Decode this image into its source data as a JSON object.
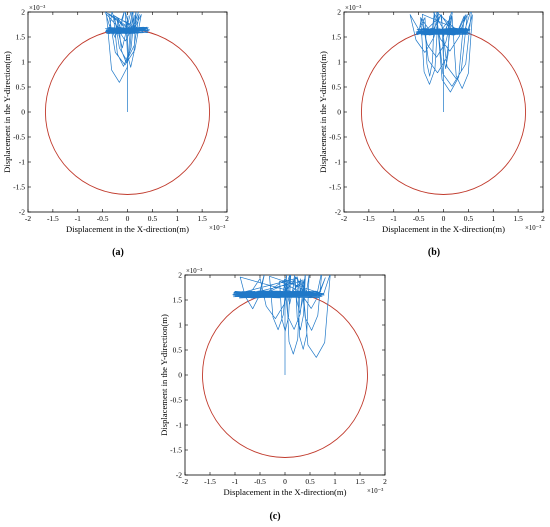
{
  "figure": {
    "panel_labels": [
      "(a)",
      "(b)",
      "(c)"
    ],
    "exponent_label": "×10⁻³",
    "colors": {
      "trajectory": "#1f78c8",
      "boundary_circle": "#c0392b",
      "axes": "#000000"
    }
  },
  "chart_data": [
    {
      "type": "line",
      "panel": "(a)",
      "xlabel": "Displacement in the X-direction(m)",
      "ylabel": "Displacement in the Y-direction(m)",
      "axis_scale": "×10⁻³",
      "xlim": [
        -2,
        2
      ],
      "ylim": [
        -2,
        2
      ],
      "xticks": [
        "-2",
        "-1.5",
        "-1",
        "-0.5",
        "0",
        "0.5",
        "1",
        "1.5",
        "2"
      ],
      "yticks": [
        "-2",
        "-1.5",
        "-1",
        "-0.5",
        "0",
        "0.5",
        "1",
        "1.5",
        "2"
      ],
      "boundary_circle": {
        "center": [
          0,
          0
        ],
        "radius": 1.65
      },
      "trajectory": {
        "start": [
          0,
          0
        ],
        "cluster_center_y": 1.62,
        "cluster_x_range": [
          -0.45,
          0.45
        ],
        "loop_min_y": 0.45
      },
      "grid": false
    },
    {
      "type": "line",
      "panel": "(b)",
      "xlabel": "Displacement in the X-direction(m)",
      "ylabel": "Displacement in the Y-direction(m)",
      "axis_scale": "×10⁻³",
      "xlim": [
        -2,
        2
      ],
      "ylim": [
        -2,
        2
      ],
      "xticks": [
        "-2",
        "-1.5",
        "-1",
        "-0.5",
        "0",
        "0.5",
        "1",
        "1.5",
        "2"
      ],
      "yticks": [
        "-2",
        "-1.5",
        "-1",
        "-0.5",
        "0",
        "0.5",
        "1",
        "1.5",
        "2"
      ],
      "boundary_circle": {
        "center": [
          0,
          0
        ],
        "radius": 1.65
      },
      "trajectory": {
        "start": [
          0,
          0
        ],
        "cluster_center_y": 1.6,
        "cluster_x_range": [
          -0.55,
          0.55
        ],
        "loop_min_y": 0.35
      },
      "grid": false
    },
    {
      "type": "line",
      "panel": "(c)",
      "xlabel": "Displacement in the X-direction(m)",
      "ylabel": "Displacement in the Y-direction(m)",
      "axis_scale": "×10⁻³",
      "xlim": [
        -2,
        2
      ],
      "ylim": [
        -2,
        2
      ],
      "xticks": [
        "-2",
        "-1.5",
        "-1",
        "-0.5",
        "0",
        "0.5",
        "1",
        "1.5",
        "2"
      ],
      "yticks": [
        "-2",
        "-1.5",
        "-1",
        "-0.5",
        "0",
        "0.5",
        "1",
        "1.5",
        "2"
      ],
      "boundary_circle": {
        "center": [
          0,
          0
        ],
        "radius": 1.65
      },
      "trajectory": {
        "start": [
          0,
          0
        ],
        "cluster_center_y": 1.6,
        "cluster_x_range": [
          -1.05,
          0.8
        ],
        "loop_min_y": 0.25
      },
      "grid": false
    }
  ]
}
